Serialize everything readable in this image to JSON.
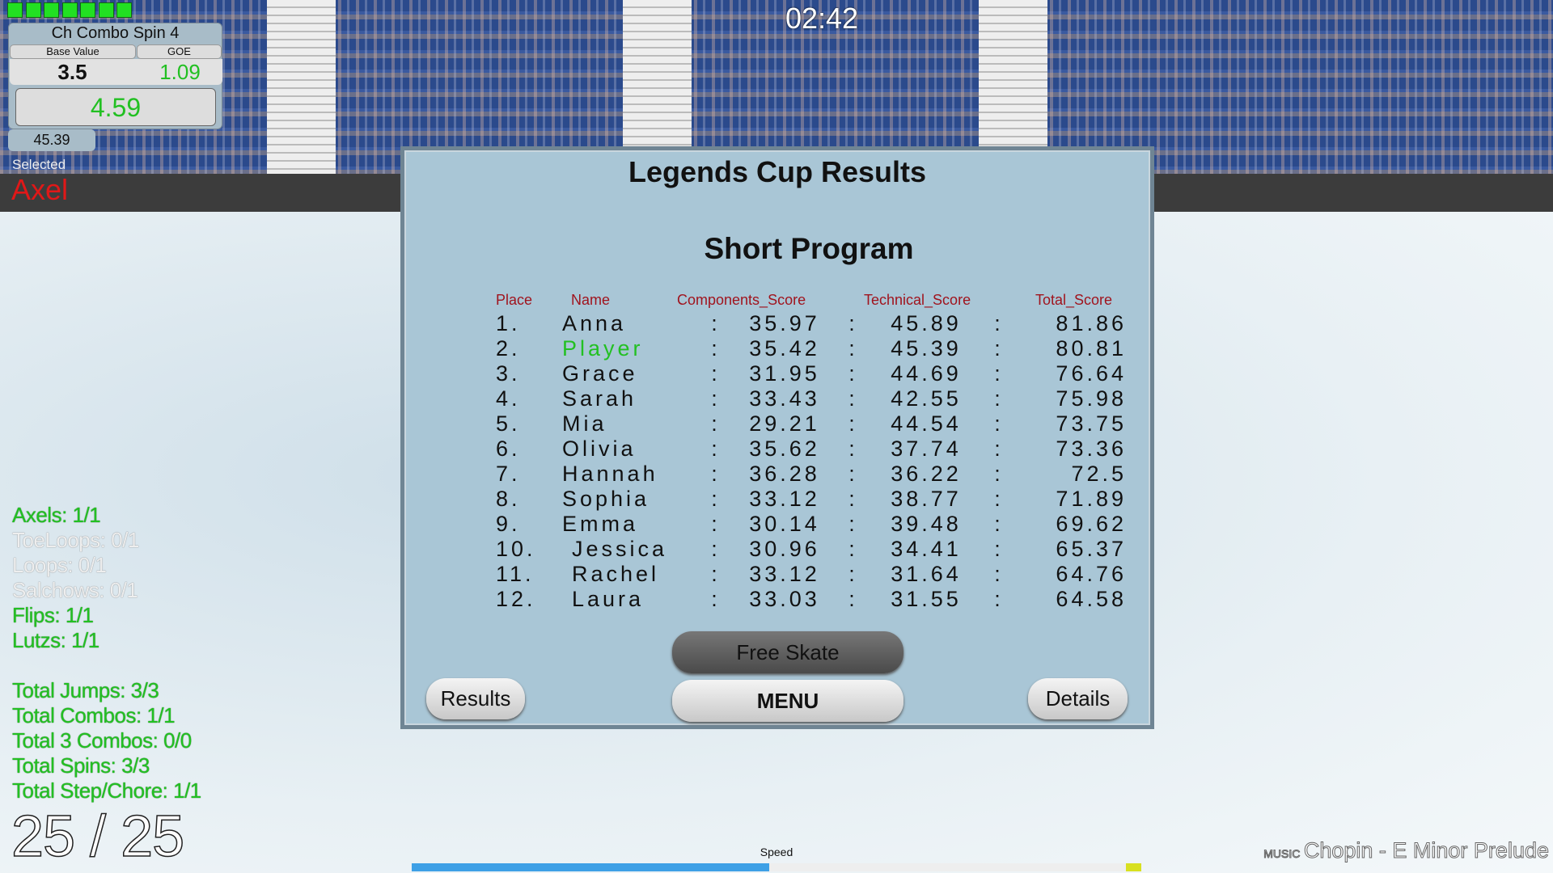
{
  "hud": {
    "timer": "02:42",
    "health_segments": 7,
    "element": {
      "name": "Ch Combo Spin 4",
      "base_label": "Base Value",
      "goe_label": "GOE",
      "base_value": "3.5",
      "goe_value": "1.09",
      "total": "4.59"
    },
    "score": "45.39",
    "selected_label": "Selected",
    "selected_jump": "Axel",
    "stats": [
      {
        "text": "Axels: 1/1",
        "done": true
      },
      {
        "text": "ToeLoops: 0/1",
        "done": false
      },
      {
        "text": "Loops: 0/1",
        "done": false
      },
      {
        "text": "Salchows: 0/1",
        "done": false
      },
      {
        "text": "Flips: 1/1",
        "done": true
      },
      {
        "text": "Lutzs: 1/1",
        "done": true
      }
    ],
    "totals": [
      "Total Jumps: 3/3",
      "Total Combos: 1/1",
      "Total 3 Combos: 0/0",
      "Total Spins: 3/3",
      "Total Step/Chore: 1/1"
    ],
    "count": "25 / 25",
    "speed_label": "Speed",
    "speed_percent": 49,
    "music_label": "MUSIC",
    "music_title": "Chopin - E Minor Prelude"
  },
  "results": {
    "title": "Legends Cup Results",
    "subtitle": "Short Program",
    "headers": [
      "Place",
      "Name",
      "Components_Score",
      "Technical_Score",
      "Total_Score"
    ],
    "rows": [
      [
        "1.",
        "Anna",
        "35.97",
        "45.89",
        "81.86"
      ],
      [
        "2.",
        "Player",
        "35.42",
        "45.39",
        "80.81"
      ],
      [
        "3.",
        "Grace",
        "31.95",
        "44.69",
        "76.64"
      ],
      [
        "4.",
        "Sarah",
        "33.43",
        "42.55",
        "75.98"
      ],
      [
        "5.",
        "Mia",
        "29.21",
        "44.54",
        "73.75"
      ],
      [
        "6.",
        "Olivia",
        "35.62",
        "37.74",
        "73.36"
      ],
      [
        "7.",
        "Hannah",
        "36.28",
        "36.22",
        "72.5"
      ],
      [
        "8.",
        "Sophia",
        "33.12",
        "38.77",
        "71.89"
      ],
      [
        "9.",
        "Emma",
        "30.14",
        "39.48",
        "69.62"
      ],
      [
        "10.",
        "Jessica",
        "30.96",
        "34.41",
        "65.37"
      ],
      [
        "11.",
        "Rachel",
        "33.12",
        "31.64",
        "64.76"
      ],
      [
        "12.",
        "Laura",
        "33.03",
        "31.55",
        "64.58"
      ]
    ],
    "highlight_color": "#22c022",
    "buttons": {
      "free_skate": "Free Skate",
      "menu": "MENU",
      "results": "Results",
      "details": "Details"
    }
  }
}
